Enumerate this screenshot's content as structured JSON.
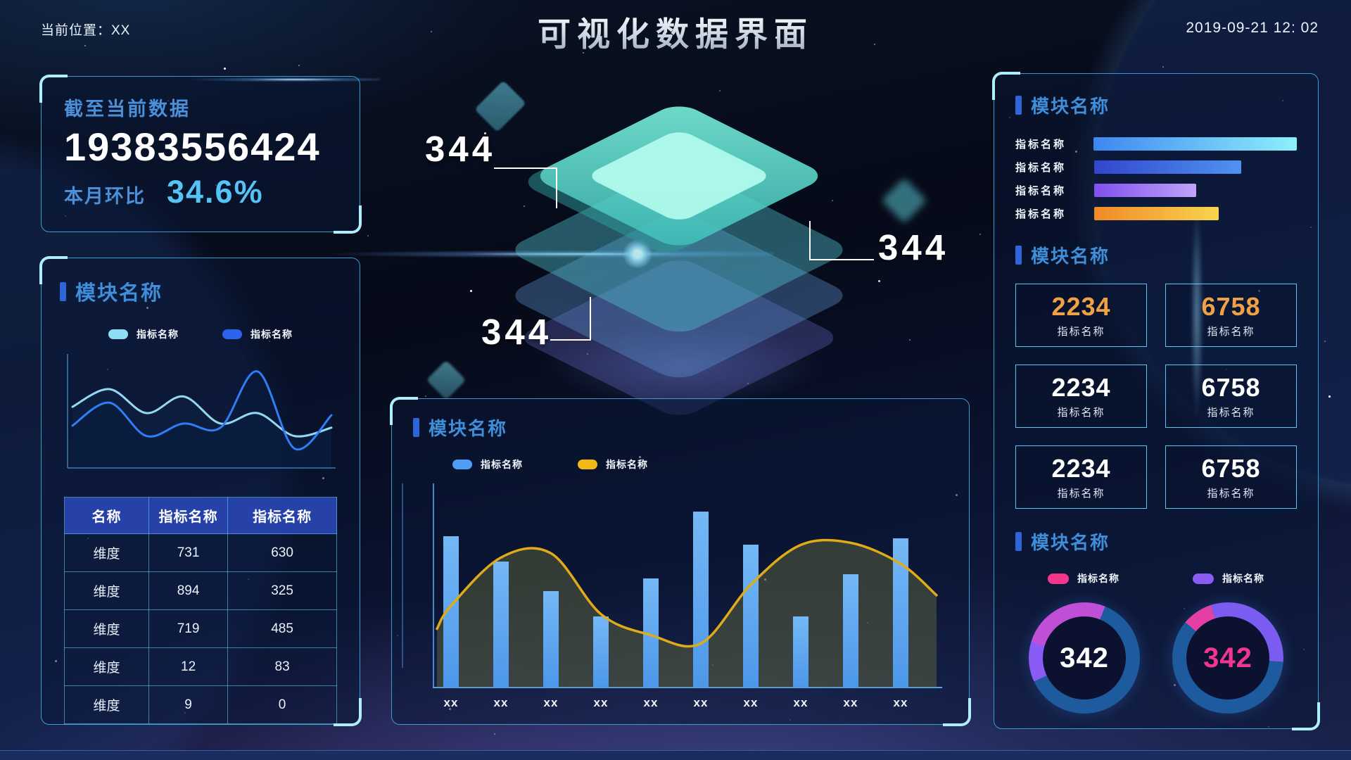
{
  "header": {
    "location": "当前位置：XX",
    "title": "可视化数据界面",
    "datetime": "2019-09-21 12: 02"
  },
  "stat_panel": {
    "title": "截至当前数据",
    "value": "19383556424",
    "ratio_label": "本月环比",
    "ratio_value": "34.6%"
  },
  "left_module": {
    "title": "模块名称",
    "legend": [
      {
        "label": "指标名称",
        "color": "#8fdcf5"
      },
      {
        "label": "指标名称",
        "color": "#2b63ea"
      }
    ],
    "chart_data": {
      "type": "line",
      "x": [
        1,
        2,
        3,
        4,
        5,
        6,
        7,
        8
      ],
      "series": [
        {
          "name": "指标名称",
          "color": "#93d9f3",
          "values": [
            58,
            75,
            52,
            68,
            42,
            52,
            30,
            38
          ]
        },
        {
          "name": "指标名称",
          "color": "#2f7ef5",
          "values": [
            40,
            62,
            30,
            42,
            38,
            92,
            18,
            50
          ]
        }
      ],
      "ylim": [
        0,
        100
      ],
      "grid": false,
      "legend_position": "top"
    },
    "table": {
      "headers": [
        "名称",
        "指标名称",
        "指标名称"
      ],
      "rows": [
        [
          "维度",
          "731",
          "630"
        ],
        [
          "维度",
          "894",
          "325"
        ],
        [
          "维度",
          "719",
          "485"
        ],
        [
          "维度",
          "12",
          "83"
        ],
        [
          "维度",
          "9",
          "0"
        ]
      ]
    }
  },
  "stack_diagram": {
    "callouts": [
      "344",
      "344",
      "344"
    ]
  },
  "bottom_module": {
    "title": "模块名称",
    "legend": [
      {
        "label": "指标名称",
        "color": "#4d9df5"
      },
      {
        "label": "指标名称",
        "color": "#f2b816"
      }
    ],
    "chart_data": {
      "type": "bar",
      "categories": [
        "xx",
        "xx",
        "xx",
        "xx",
        "xx",
        "xx",
        "xx",
        "xx",
        "xx",
        "xx"
      ],
      "series": [
        {
          "name": "指标名称",
          "type": "bar",
          "color": "#57a4f0",
          "values": [
            72,
            60,
            46,
            34,
            52,
            84,
            68,
            34,
            54,
            71
          ]
        },
        {
          "name": "指标名称",
          "type": "line",
          "color": "#e0ab18",
          "values": [
            39,
            62,
            64,
            35,
            25,
            21,
            49,
            68,
            69,
            59
          ]
        }
      ],
      "ylim": [
        0,
        100
      ],
      "legend_position": "top"
    }
  },
  "right_panel": {
    "module1": {
      "title": "模块名称",
      "chart_data": {
        "type": "bar",
        "orientation": "horizontal",
        "categories": [
          "指标名称",
          "指标名称",
          "指标名称",
          "指标名称"
        ],
        "values": [
          100,
          72,
          50,
          61
        ],
        "colors": [
          [
            "#3e86f0",
            "#8ef0fb"
          ],
          [
            "#3246cc",
            "#4f93f2"
          ],
          [
            "#8050f0",
            "#bfa4f8"
          ],
          [
            "#f08a28",
            "#f8d44e"
          ]
        ]
      }
    },
    "module2": {
      "title": "模块名称",
      "cards": [
        {
          "value": "2234",
          "label": "指标名称",
          "accent": true
        },
        {
          "value": "6758",
          "label": "指标名称",
          "accent": true
        },
        {
          "value": "2234",
          "label": "指标名称",
          "accent": false
        },
        {
          "value": "6758",
          "label": "指标名称",
          "accent": false
        },
        {
          "value": "2234",
          "label": "指标名称",
          "accent": false
        },
        {
          "value": "6758",
          "label": "指标名称",
          "accent": false
        }
      ]
    },
    "module3": {
      "title": "模块名称",
      "legend": [
        {
          "label": "指标名称",
          "color": "#f5368c"
        },
        {
          "label": "指标名称",
          "color": "#8a5cf5"
        }
      ],
      "chart_data": [
        {
          "type": "pie",
          "value": "342",
          "value_color": "#ffffff",
          "start_deg": 245,
          "segments": [
            {
              "color": "#8a5cf5",
              "deg": 42
            },
            {
              "color": "#c04fd8",
              "deg": 95
            },
            {
              "color": "#1d5a9e",
              "deg": 223
            }
          ]
        },
        {
          "type": "pie",
          "value": "342",
          "value_color": "#f0368f",
          "start_deg": 310,
          "segments": [
            {
              "color": "#e43fa4",
              "deg": 32
            },
            {
              "color": "#7a5cf0",
              "deg": 112
            },
            {
              "color": "#1d5a9e",
              "deg": 216
            }
          ]
        }
      ]
    }
  },
  "colors": {
    "accent_cyan": "#49c3ee",
    "accent_blue": "#2e66d9",
    "header_blue": "#3f8ed9",
    "table_header_bg": "#2642a8",
    "stat_cyan": "#56c3f7",
    "card_orange": "#f0a143"
  }
}
